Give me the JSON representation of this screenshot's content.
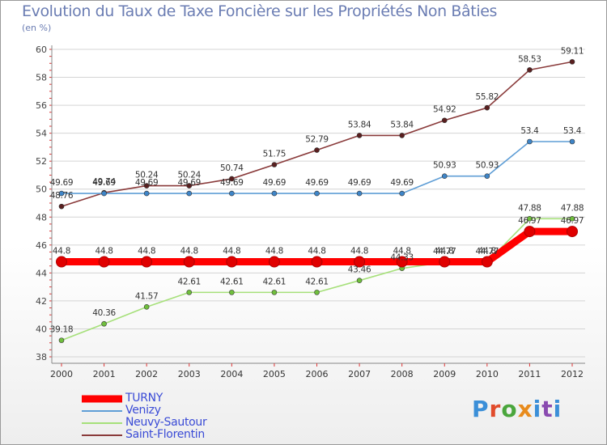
{
  "title": "Evolution du Taux de Taxe Foncière sur les Propriétés Non Bâties",
  "unit_label": "(en %)",
  "logo_text": "Proxiti",
  "chart_data": {
    "type": "line",
    "x": [
      2000,
      2001,
      2002,
      2003,
      2004,
      2005,
      2006,
      2007,
      2008,
      2009,
      2010,
      2011,
      2012
    ],
    "xtick_labels": [
      "2000",
      "2001",
      "2002",
      "2003",
      "2004",
      "2005",
      "2006",
      "2007",
      "2008",
      "2009",
      "2010",
      "2011",
      "2012"
    ],
    "ylim": [
      38,
      60
    ],
    "yticks": [
      38,
      40,
      42,
      44,
      46,
      48,
      50,
      52,
      54,
      56,
      58,
      60
    ],
    "grid": "horizontal",
    "series": [
      {
        "name": "TURNY",
        "color": "#ff0000",
        "marker_color": "#e00000",
        "values": [
          44.8,
          44.8,
          44.8,
          44.8,
          44.8,
          44.8,
          44.8,
          44.8,
          44.8,
          44.8,
          44.8,
          46.97,
          46.97
        ],
        "labels": [
          "44.8",
          "44.8",
          "44.8",
          "44.8",
          "44.8",
          "44.8",
          "44.8",
          "44.8",
          "44.8",
          "44.8",
          "44.8",
          "46.97",
          "46.97"
        ]
      },
      {
        "name": "Venizy",
        "color": "#5f9ed6",
        "marker_color": "#3e85c8",
        "values": [
          49.69,
          49.69,
          49.69,
          49.69,
          49.69,
          49.69,
          49.69,
          49.69,
          49.69,
          50.93,
          50.93,
          53.4,
          53.4
        ],
        "labels": [
          "49.69",
          "49.69",
          "49.69",
          "49.69",
          "49.69",
          "49.69",
          "49.69",
          "49.69",
          "49.69",
          "50.93",
          "50.93",
          "53.4",
          "53.4"
        ]
      },
      {
        "name": "Neuvy-Sautour",
        "color": "#a6e07a",
        "marker_color": "#6fbf3c",
        "values": [
          39.18,
          40.36,
          41.57,
          42.61,
          42.61,
          42.61,
          42.61,
          43.46,
          44.33,
          44.77,
          44.77,
          47.88,
          47.88
        ],
        "labels": [
          "39.18",
          "40.36",
          "41.57",
          "42.61",
          "42.61",
          "42.61",
          "42.61",
          "43.46",
          "44.33",
          "44.77",
          "44.77",
          "47.88",
          "47.88"
        ]
      },
      {
        "name": "Saint-Florentin",
        "color": "#8a3b3b",
        "marker_color": "#5a1f1f",
        "values": [
          48.76,
          49.74,
          50.24,
          50.24,
          50.74,
          51.75,
          52.79,
          53.84,
          53.84,
          54.92,
          55.82,
          58.53,
          59.11
        ],
        "labels": [
          "48.76",
          "49.74",
          "50.24",
          "50.24",
          "50.74",
          "51.75",
          "52.79",
          "53.84",
          "53.84",
          "54.92",
          "55.82",
          "58.53",
          "59.11"
        ]
      }
    ]
  }
}
